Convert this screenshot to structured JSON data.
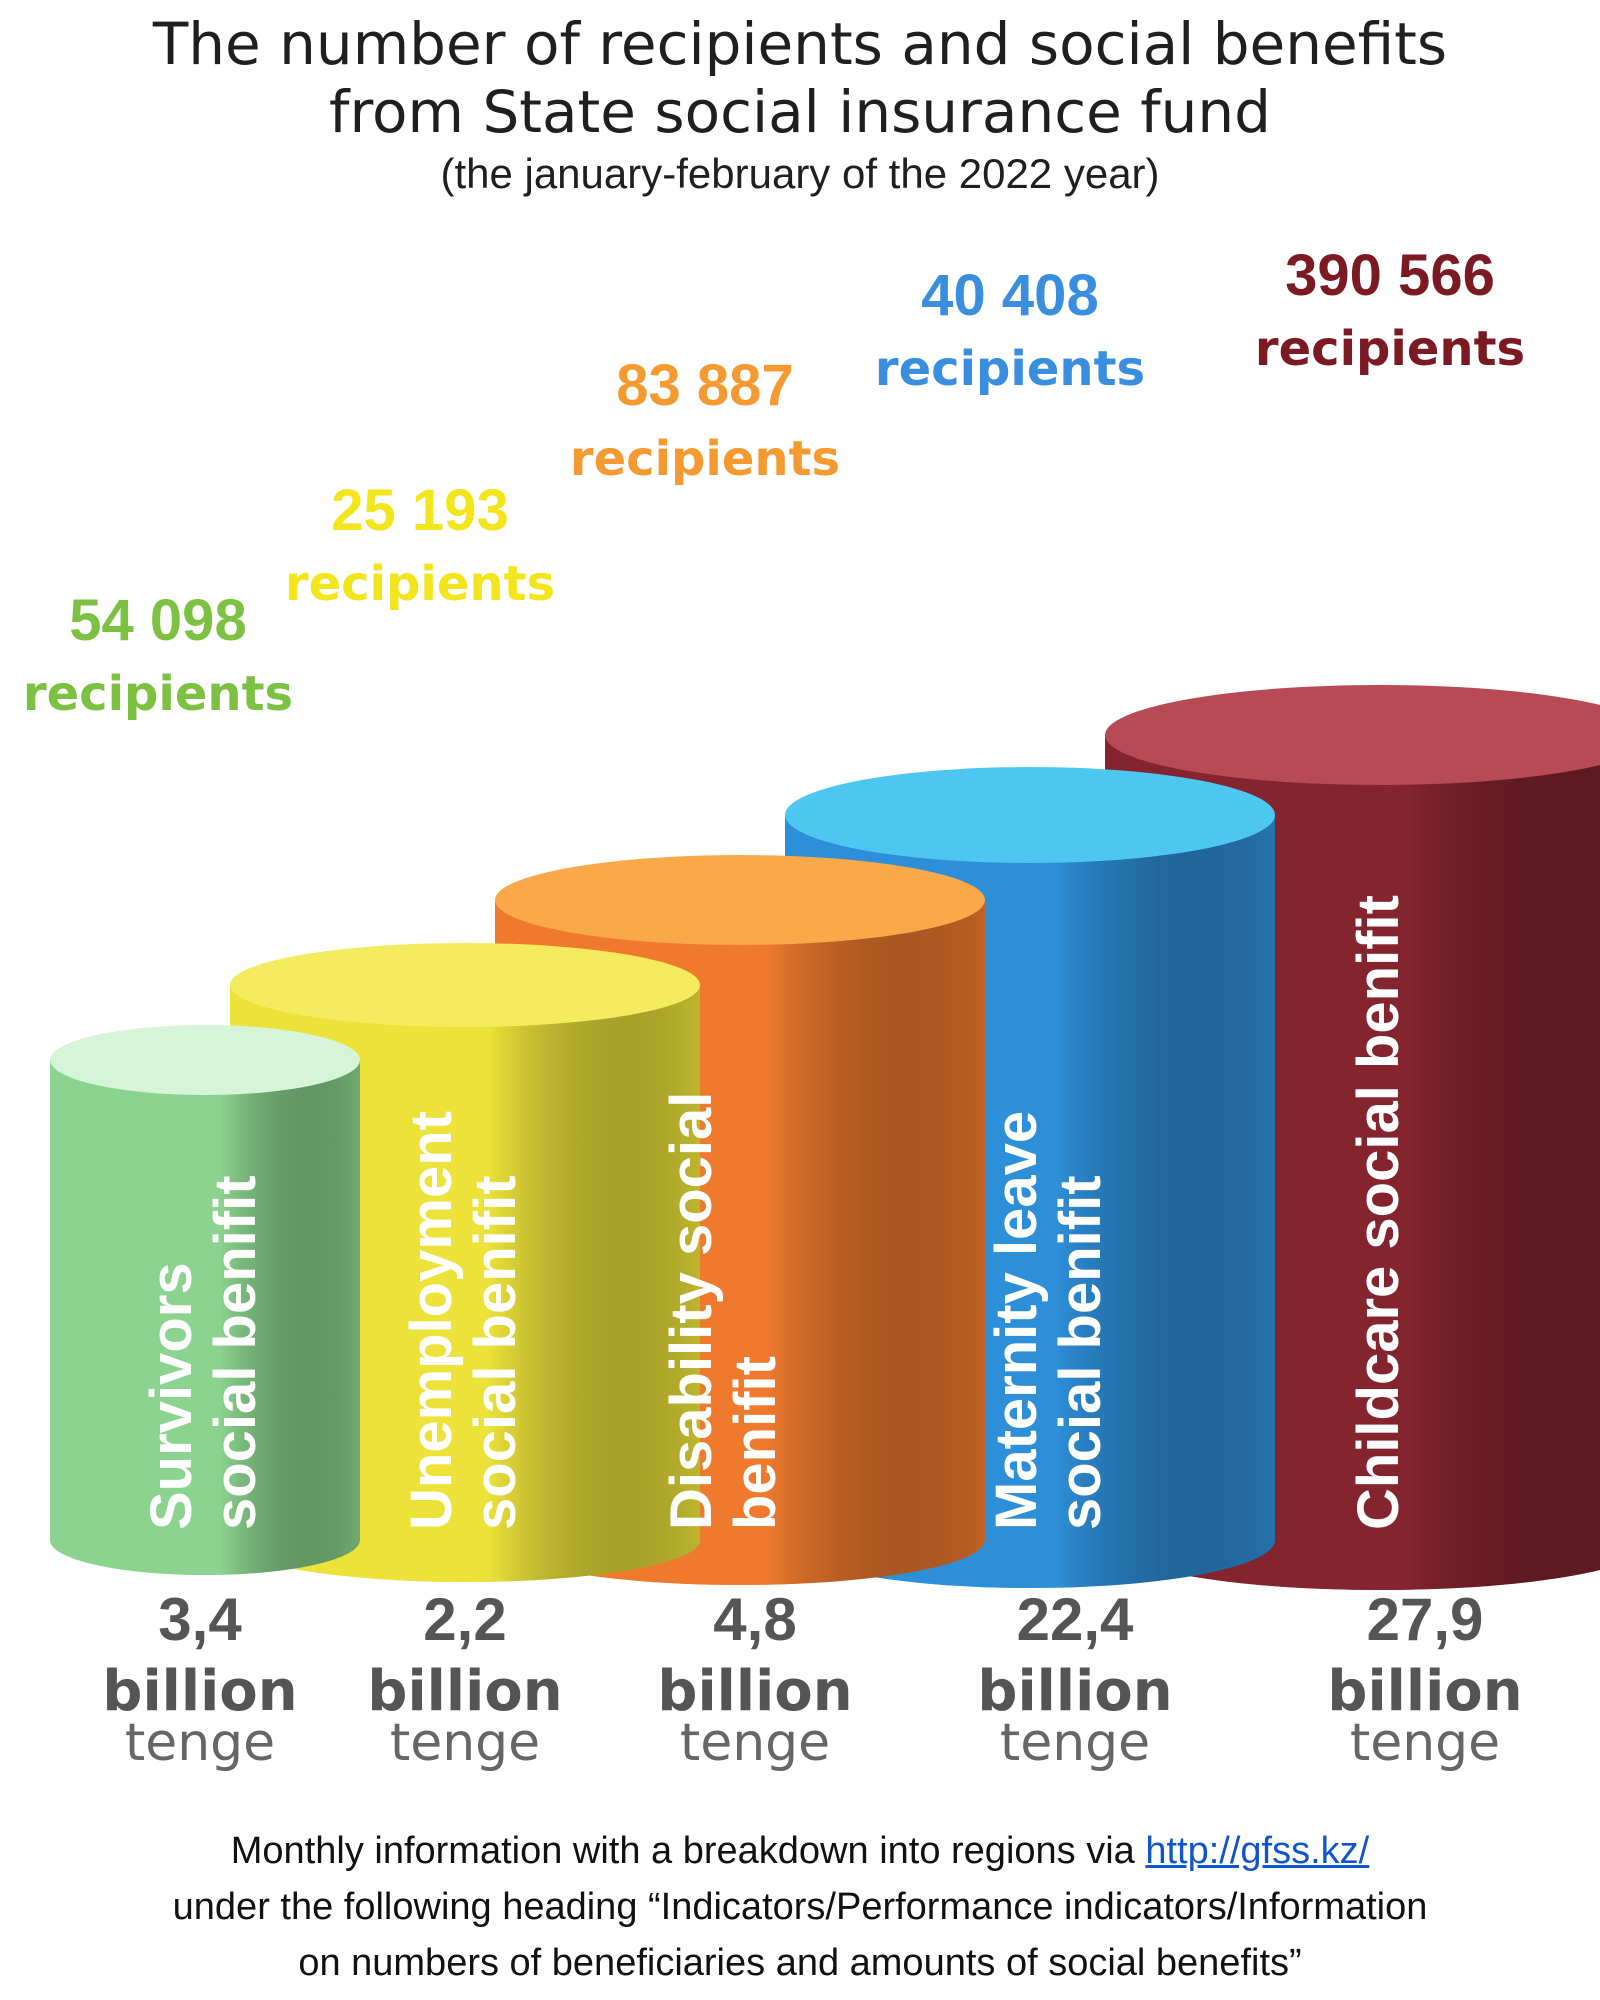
{
  "header": {
    "title_line1": "The number of recipients and social benefits",
    "title_line2": "from State social insurance fund",
    "subtitle": "(the january-february of the 2022 year)"
  },
  "chart_data": {
    "type": "bar",
    "categories": [
      "Survivors social benifit",
      "Unemployment social benifit",
      "Disability social benifit",
      "Maternity leave social benifit",
      "Childcare social benifit"
    ],
    "category_lines": [
      [
        "Survivors",
        "social benifit"
      ],
      [
        "Unemployment",
        "social benifit"
      ],
      [
        "Disability social",
        "benifit"
      ],
      [
        "Maternity leave",
        "social benifit"
      ],
      [
        "Childcare social benifit"
      ]
    ],
    "recipients_value_labels": [
      "54 098",
      "25 193",
      "83 887",
      "40 408",
      "390 566"
    ],
    "recipients_unit": "recipients",
    "recipients": [
      54098,
      25193,
      83887,
      40408,
      390566
    ],
    "amount_labels": [
      "3,4",
      "2,2",
      "4,8",
      "22,4",
      "27,9"
    ],
    "amounts": [
      3.4,
      2.2,
      4.8,
      22.4,
      27.9
    ],
    "amount_unit_line1": "billion",
    "amount_unit_line2": "tenge",
    "colors": [
      "#8bd38e",
      "#ece23a",
      "#ef7a2e",
      "#2e8fd9",
      "#84242e"
    ],
    "top_colors": [
      "#d6f5d8",
      "#f4ec5e",
      "#f9a84a",
      "#4ec6f2",
      "#b84a56"
    ],
    "label_colors": [
      "#7dc142",
      "#f2e51c",
      "#f59a30",
      "#3a8ee0",
      "#7b1a22"
    ]
  },
  "footer": {
    "line1_prefix": "Monthly information with a breakdown into regions via ",
    "link": "http://gfss.kz/",
    "line2": "under the following heading “Indicators/Performance indicators/Information",
    "line3": "on numbers of beneficiaries and amounts of social benefits”"
  }
}
